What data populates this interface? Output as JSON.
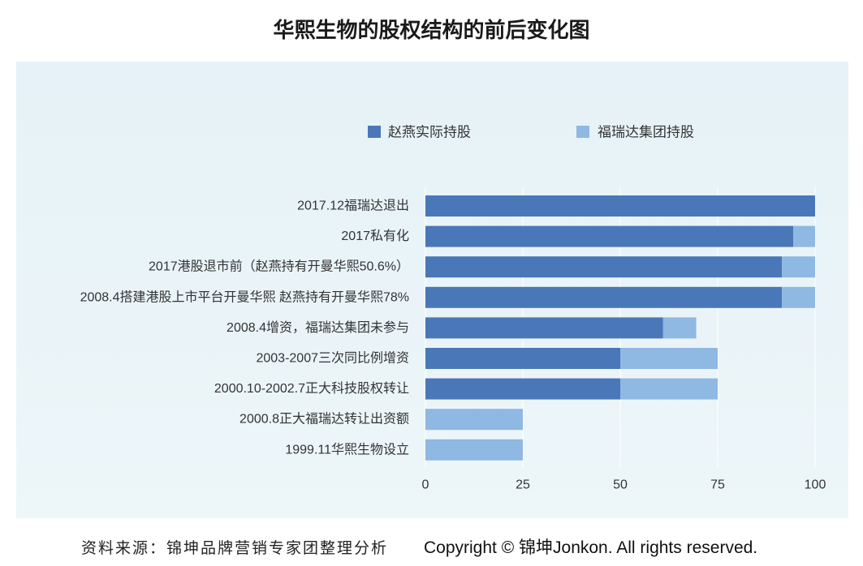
{
  "chart_data": {
    "type": "bar",
    "orientation": "horizontal",
    "stacked": true,
    "title": "华熙生物的股权结构的前后变化图",
    "categories": [
      "2017.12福瑞达退出",
      "2017私有化",
      "2017港股退市前（赵燕持有开曼华熙50.6%）",
      "2008.4搭建港股上市平台开曼华熙 赵燕持有开曼华熙78%",
      "2008.4增资，福瑞达集团未参与",
      "2003-2007三次同比例增资",
      "2000.10-2002.7正大科技股权转让",
      "2000.8正大福瑞达转让出资额",
      "1999.11华熙生物设立"
    ],
    "series": [
      {
        "name": "赵燕实际持股",
        "color": "#4a77b7",
        "values": [
          100,
          94.4,
          91.5,
          91.5,
          61,
          50,
          50,
          0,
          0
        ]
      },
      {
        "name": "福瑞达集团持股",
        "color": "#8fb8e2",
        "values": [
          0,
          5.6,
          8.5,
          8.5,
          8.5,
          25,
          25,
          25,
          25
        ]
      }
    ],
    "xlim": [
      0,
      100
    ],
    "x_ticks": [
      0,
      25,
      50,
      75,
      100
    ],
    "grid": true,
    "legend_position": "top"
  },
  "footer": {
    "source": "资料来源：锦坤品牌营销专家团整理分析",
    "copyright": "Copyright © 锦坤Jonkon. All rights reserved."
  }
}
